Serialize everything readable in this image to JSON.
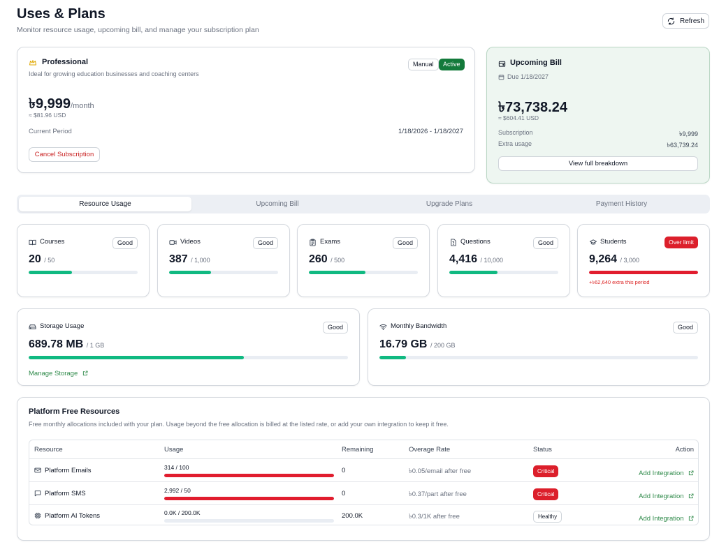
{
  "header": {
    "title": "Uses & Plans",
    "subtitle": "Monitor resource usage, upcoming bill, and manage your subscription plan",
    "refresh_label": "Refresh"
  },
  "plan": {
    "name": "Professional",
    "description": "Ideal for growing education businesses and coaching centers",
    "badge_manual": "Manual",
    "badge_active": "Active",
    "price": "৳9,999",
    "price_unit": "/month",
    "usd": "≈ $81.96 USD",
    "period_label": "Current Period",
    "period_value": "1/18/2026 - 1/18/2027",
    "cancel_label": "Cancel Subscription"
  },
  "bill": {
    "title": "Upcoming Bill",
    "due": "Due 1/18/2027",
    "amount": "৳73,738.24",
    "usd": "≈ $604.41 USD",
    "subscription_label": "Subscription",
    "subscription_value": "৳9,999",
    "extra_label": "Extra usage",
    "extra_value": "৳63,739.24",
    "breakdown_label": "View full breakdown"
  },
  "tabs": [
    "Resource Usage",
    "Upcoming Bill",
    "Upgrade Plans",
    "Payment History"
  ],
  "usage": [
    {
      "label": "Courses",
      "value": "20",
      "limit": "/ 50",
      "status": "Good",
      "fraction": 0.4,
      "note": ""
    },
    {
      "label": "Videos",
      "value": "387",
      "limit": "/ 1,000",
      "status": "Good",
      "fraction": 0.387,
      "note": ""
    },
    {
      "label": "Exams",
      "value": "260",
      "limit": "/ 500",
      "status": "Good",
      "fraction": 0.52,
      "note": ""
    },
    {
      "label": "Questions",
      "value": "4,416",
      "limit": "/ 10,000",
      "status": "Good",
      "fraction": 0.4416,
      "note": ""
    },
    {
      "label": "Students",
      "value": "9,264",
      "limit": "/ 3,000",
      "status": "Over limit",
      "fraction": 1.0,
      "note": "+৳62,640 extra this period"
    }
  ],
  "storage": {
    "label": "Storage Usage",
    "value": "689.78 MB",
    "limit": "/ 1 GB",
    "status": "Good",
    "fraction": 0.674,
    "manage_label": "Manage Storage"
  },
  "bandwidth": {
    "label": "Monthly Bandwidth",
    "value": "16.79 GB",
    "limit": "/ 200 GB",
    "status": "Good",
    "fraction": 0.084
  },
  "platform": {
    "title": "Platform Free Resources",
    "description": "Free monthly allocations included with your plan. Usage beyond the free allocation is billed at the listed rate, or add your own integration to keep it free.",
    "columns": [
      "Resource",
      "Usage",
      "Remaining",
      "Overage Rate",
      "Status",
      "Action"
    ],
    "rows": [
      {
        "resource": "Platform Emails",
        "usage": "314 / 100",
        "fraction": 1.0,
        "remaining": "0",
        "rate": "৳0.05/email after free",
        "status": "Critical",
        "action": "Add Integration"
      },
      {
        "resource": "Platform SMS",
        "usage": "2,992 / 50",
        "fraction": 1.0,
        "remaining": "0",
        "rate": "৳0.37/part after free",
        "status": "Critical",
        "action": "Add Integration"
      },
      {
        "resource": "Platform AI Tokens",
        "usage": "0.0K / 200.0K",
        "fraction": 0.0,
        "remaining": "200.0K",
        "rate": "৳0.3/1K after free",
        "status": "Healthy",
        "action": "Add Integration"
      }
    ]
  },
  "colors": {
    "good": "#10b981",
    "over": "#e11d2e",
    "active_badge": "#137a3b",
    "link": "#2f8a4a",
    "bill_bg": "#eef6f1"
  }
}
